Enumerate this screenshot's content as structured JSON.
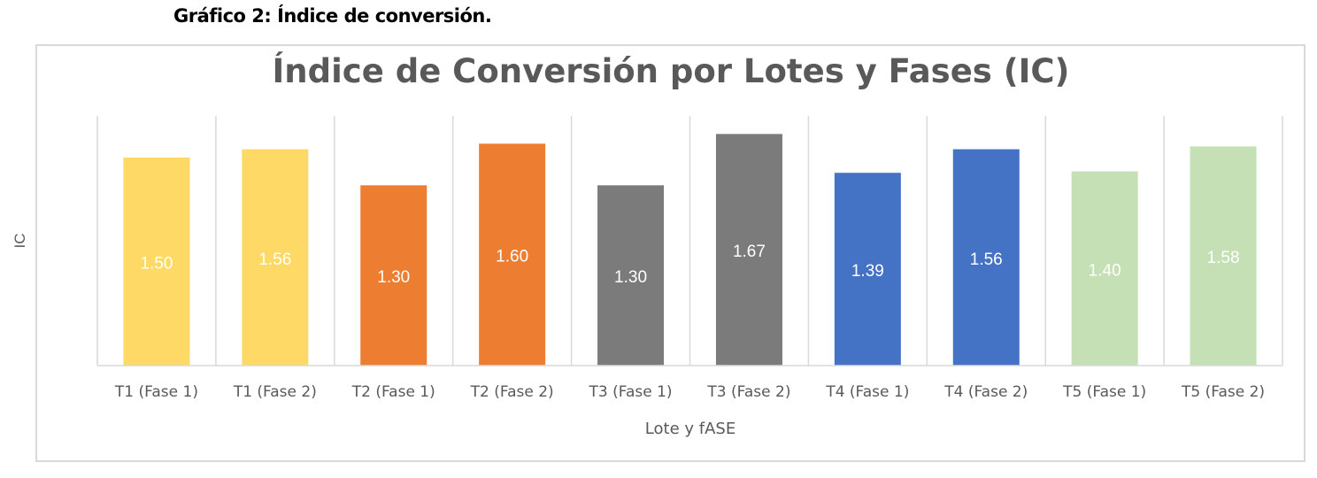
{
  "heading": "Gráfico 2: Índice de conversión.",
  "chart_data": {
    "type": "bar",
    "title": "Índice de Conversión por Lotes y Fases (IC)",
    "xlabel": "Lote y fASE",
    "ylabel": "IC",
    "ylim": [
      0,
      1.8
    ],
    "grid": "vertical category separators",
    "legend": "none",
    "categories": [
      "T1 (Fase 1)",
      "T1 (Fase 2)",
      "T2 (Fase 1)",
      "T2 (Fase 2)",
      "T3 (Fase 1)",
      "T3 (Fase 2)",
      "T4 (Fase 1)",
      "T4 (Fase 2)",
      "T5 (Fase 1)",
      "T5 (Fase 2)"
    ],
    "values": [
      1.5,
      1.56,
      1.3,
      1.6,
      1.3,
      1.67,
      1.39,
      1.56,
      1.4,
      1.58
    ],
    "labels": [
      "1.50",
      "1.56",
      "1.30",
      "1.60",
      "1.30",
      "1.67",
      "1.39",
      "1.56",
      "1.40",
      "1.58"
    ],
    "colors": [
      "#FFD966",
      "#FFD966",
      "#ED7D31",
      "#ED7D31",
      "#7B7B7B",
      "#7B7B7B",
      "#4472C4",
      "#4472C4",
      "#C5E0B4",
      "#C5E0B4"
    ]
  }
}
